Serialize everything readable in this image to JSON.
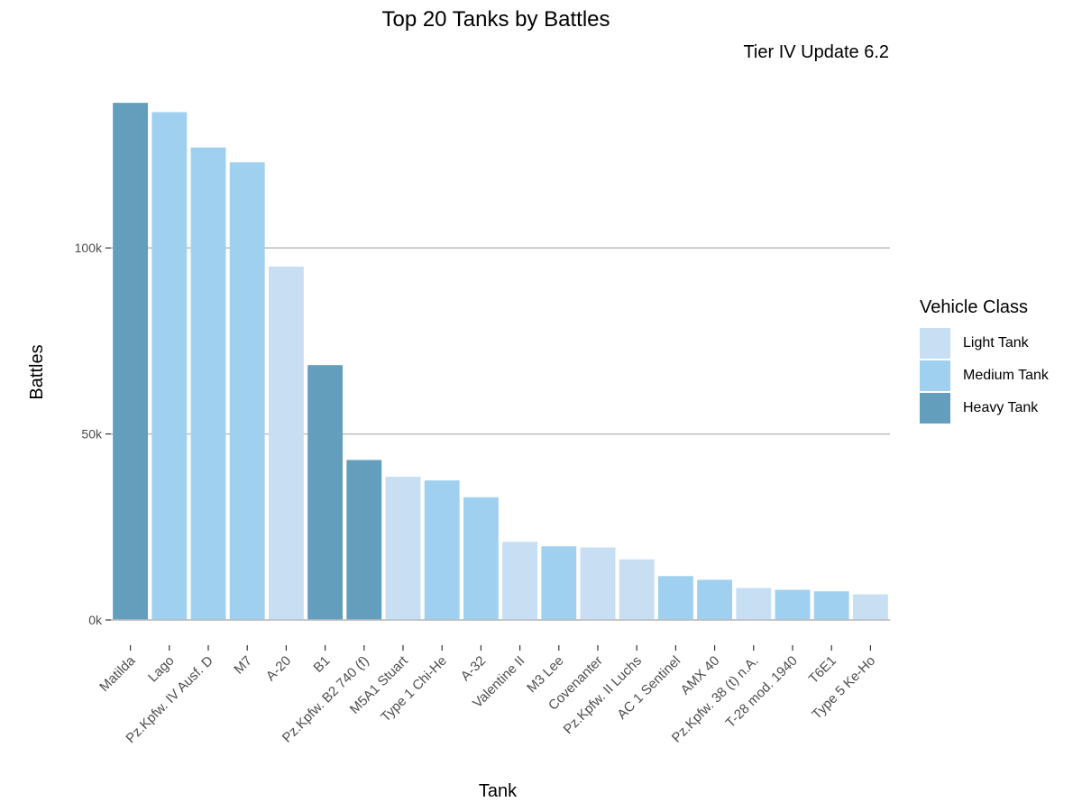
{
  "chart_data": {
    "type": "bar",
    "title": "Top 20 Tanks by Battles",
    "subtitle": "Tier IV Update 6.2",
    "xlabel": "Tank",
    "ylabel": "Battles",
    "ylim": [
      0,
      140000
    ],
    "yticks": [
      0,
      50000,
      100000
    ],
    "ytick_labels": [
      "0k",
      "50k",
      "100k"
    ],
    "grid": "horizontal major",
    "legend": {
      "title": "Vehicle Class",
      "placement": "right",
      "entries": [
        {
          "name": "Light Tank",
          "color": "#c8dff3"
        },
        {
          "name": "Medium Tank",
          "color": "#9fd0f0"
        },
        {
          "name": "Heavy Tank",
          "color": "#649ebd"
        }
      ]
    },
    "categories": [
      "Matilda",
      "Lago",
      "Pz.Kpfw. IV Ausf. D",
      "M7",
      "A-20",
      "B1",
      "Pz.Kpfw. B2 740 (f)",
      "M5A1 Stuart",
      "Type 1 Chi-He",
      "A-32",
      "Valentine II",
      "M3 Lee",
      "Covenanter",
      "Pz.Kpfw. II Luchs",
      "AC 1 Sentinel",
      "AMX 40",
      "Pz.Kpfw. 38 (t) n.A.",
      "T-28 mod. 1940",
      "T6E1",
      "Type 5 Ke-Ho"
    ],
    "values": [
      139000,
      136500,
      127000,
      123000,
      95000,
      68500,
      43000,
      38500,
      37500,
      33000,
      21000,
      19800,
      19500,
      16300,
      11800,
      10800,
      8600,
      8100,
      7700,
      6900
    ],
    "classes": [
      "Heavy Tank",
      "Medium Tank",
      "Medium Tank",
      "Medium Tank",
      "Light Tank",
      "Heavy Tank",
      "Heavy Tank",
      "Light Tank",
      "Medium Tank",
      "Medium Tank",
      "Light Tank",
      "Medium Tank",
      "Light Tank",
      "Light Tank",
      "Medium Tank",
      "Medium Tank",
      "Light Tank",
      "Medium Tank",
      "Medium Tank",
      "Light Tank"
    ]
  }
}
